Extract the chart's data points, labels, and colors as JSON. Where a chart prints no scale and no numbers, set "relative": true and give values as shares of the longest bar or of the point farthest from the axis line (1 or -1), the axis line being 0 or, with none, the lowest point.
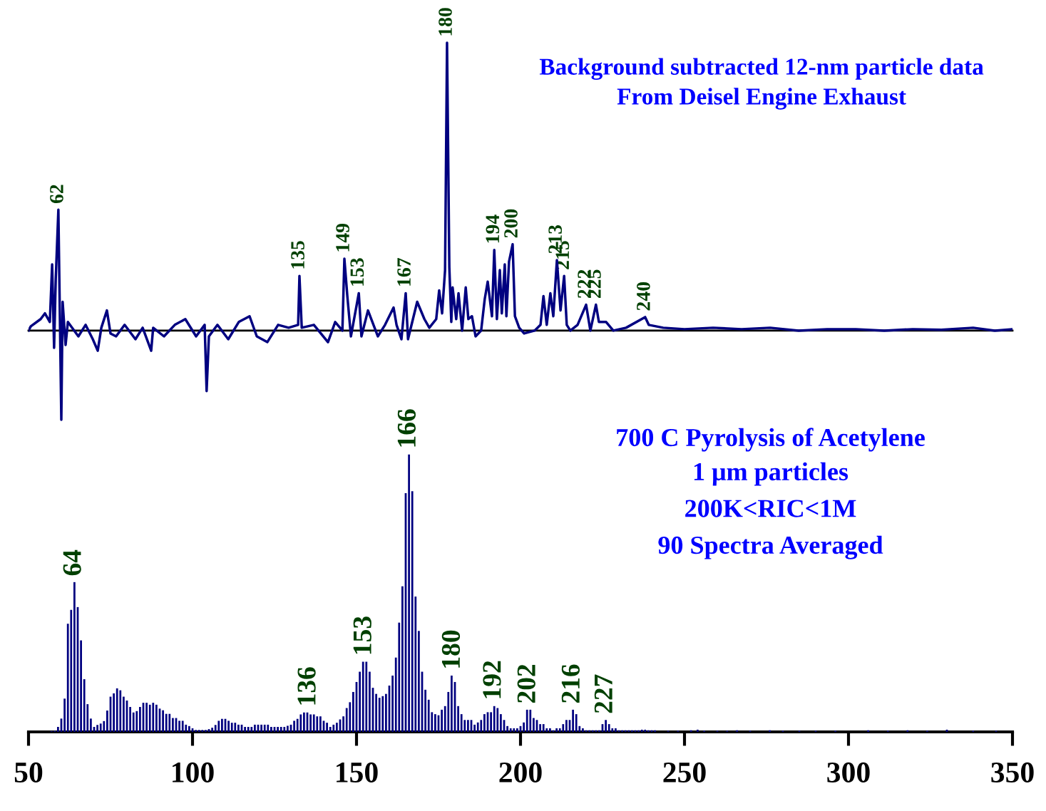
{
  "chart_data": [
    {
      "type": "line",
      "title": "Background subtracted 12-nm particle data",
      "subtitle": "From Deisel Engine Exhaust",
      "relative": true,
      "tick_labels": false,
      "xlim": [
        50,
        350
      ],
      "series": [
        {
          "color": "#000080",
          "x": [
            50,
            50.7,
            53.7,
            55,
            56.5,
            57.2,
            57.8,
            58.3,
            59.1,
            60,
            60.4,
            61.3,
            62,
            65.2,
            67.4,
            69.6,
            71.1,
            72.2,
            73.9,
            75,
            76.7,
            79.3,
            82.6,
            84.8,
            87.4,
            88,
            91.3,
            94.6,
            97.8,
            101.1,
            103.7,
            104.3,
            105,
            107.6,
            110.9,
            114.1,
            117.4,
            119.6,
            122.8,
            126.1,
            129.3,
            132.2,
            132.6,
            133.3,
            137,
            141.3,
            143.5,
            145.7,
            146.3,
            147.2,
            148.3,
            150.7,
            151.5,
            153.5,
            156.5,
            158.7,
            161.3,
            162.2,
            163.7,
            165,
            165.7,
            168.5,
            170.7,
            172.2,
            174.3,
            175.2,
            176.1,
            177,
            177.6,
            178.3,
            178.9,
            179.3,
            180.4,
            181.1,
            182.2,
            183.3,
            184.1,
            185.2,
            186.3,
            188,
            189.1,
            190,
            191.3,
            192,
            192.8,
            193.7,
            194.3,
            195.2,
            195.7,
            196.5,
            197.6,
            198.3,
            199.6,
            201.1,
            204.3,
            206.1,
            207,
            208,
            209.1,
            210,
            211.1,
            212.2,
            213.3,
            214.1,
            215.2,
            217.4,
            220,
            221.3,
            223,
            223.9,
            226.1,
            228.3,
            232.2,
            238,
            239.1,
            243.5,
            250,
            258.7,
            267.4,
            276.1,
            284.8,
            293.5,
            302.2,
            310.9,
            319.6,
            328.3,
            338,
            344.6,
            350
          ],
          "values": [
            0,
            0.015,
            0.04,
            0.06,
            0.03,
            0.23,
            -0.06,
            0.18,
            0.42,
            -0.31,
            0.1,
            -0.05,
            0.03,
            -0.02,
            0.02,
            -0.03,
            -0.07,
            0.01,
            0.07,
            -0.01,
            -0.02,
            0.02,
            -0.03,
            0.01,
            -0.07,
            0.01,
            -0.02,
            0.02,
            0.04,
            -0.02,
            0.02,
            -0.21,
            -0.02,
            0.02,
            -0.03,
            0.03,
            0.05,
            -0.02,
            -0.04,
            0.02,
            0.01,
            0.02,
            0.19,
            0.01,
            0.02,
            -0.04,
            0.03,
            0.0,
            0.25,
            0.12,
            -0.02,
            0.13,
            -0.02,
            0.07,
            -0.02,
            0.02,
            0.08,
            0.02,
            -0.03,
            0.13,
            -0.03,
            0.1,
            0.04,
            0.01,
            0.04,
            0.14,
            0.06,
            0.21,
            1.0,
            0.22,
            0.03,
            0.15,
            0.04,
            0.13,
            0.0,
            0.15,
            0.04,
            0.05,
            -0.02,
            0.0,
            0.11,
            0.17,
            0.05,
            0.28,
            0.04,
            0.21,
            0.06,
            0.23,
            0.05,
            0.24,
            0.3,
            0.05,
            0.01,
            -0.01,
            0.0,
            0.02,
            0.12,
            0.02,
            0.13,
            0.05,
            0.245,
            0.07,
            0.19,
            0.02,
            0.0,
            0.02,
            0.09,
            0.0,
            0.09,
            0.03,
            0.03,
            0.0,
            0.01,
            0.047,
            0.02,
            0.01,
            0.005,
            0.01,
            0.005,
            0.01,
            0.0,
            0.005,
            0.005,
            0.0,
            0.005,
            0.003,
            0.01,
            0.0,
            0.005
          ]
        }
      ],
      "annotations": [
        {
          "text": "62",
          "x": 59.1,
          "y": 0.42
        },
        {
          "text": "135",
          "x": 132.6,
          "y": 0.19
        },
        {
          "text": "149",
          "x": 146.3,
          "y": 0.25
        },
        {
          "text": "153",
          "x": 150.7,
          "y": 0.13
        },
        {
          "text": "167",
          "x": 165,
          "y": 0.13
        },
        {
          "text": "180",
          "x": 177.6,
          "y": 1.0
        },
        {
          "text": "194",
          "x": 192,
          "y": 0.28
        },
        {
          "text": "200",
          "x": 197.6,
          "y": 0.3
        },
        {
          "text": "213",
          "x": 211.1,
          "y": 0.245
        },
        {
          "text": "215",
          "x": 213.3,
          "y": 0.19
        },
        {
          "text": "222",
          "x": 220,
          "y": 0.09
        },
        {
          "text": "225",
          "x": 223,
          "y": 0.09
        },
        {
          "text": "240",
          "x": 238,
          "y": 0.047
        }
      ]
    },
    {
      "type": "bar",
      "title": "700 C Pyrolysis of Acetylene",
      "subtitle": "1 μm particles\n200K<RIC<1M\n90 Spectra Averaged",
      "relative": true,
      "xlim": [
        50,
        350
      ],
      "xticks": [
        50,
        100,
        150,
        200,
        250,
        300,
        350
      ],
      "series": [
        {
          "color": "#000080",
          "x": [
            57,
            58,
            59,
            60,
            61,
            62,
            63,
            64,
            65,
            66,
            67,
            68,
            69,
            70,
            71,
            72,
            73,
            74,
            75,
            76,
            77,
            78,
            79,
            80,
            81,
            82,
            83,
            84,
            85,
            86,
            87,
            88,
            89,
            90,
            91,
            92,
            93,
            94,
            95,
            96,
            97,
            98,
            99,
            100,
            101,
            102,
            103,
            104,
            105,
            106,
            107,
            108,
            109,
            110,
            111,
            112,
            113,
            114,
            115,
            116,
            117,
            118,
            119,
            120,
            121,
            122,
            123,
            124,
            125,
            126,
            127,
            128,
            129,
            130,
            131,
            132,
            133,
            134,
            135,
            136,
            137,
            138,
            139,
            140,
            141,
            142,
            143,
            144,
            145,
            146,
            147,
            148,
            149,
            150,
            151,
            152,
            153,
            154,
            155,
            156,
            157,
            158,
            159,
            160,
            161,
            162,
            163,
            164,
            165,
            166,
            167,
            168,
            169,
            170,
            171,
            172,
            173,
            174,
            175,
            176,
            177,
            178,
            179,
            180,
            181,
            182,
            183,
            184,
            185,
            186,
            187,
            188,
            189,
            190,
            191,
            192,
            193,
            194,
            195,
            196,
            197,
            198,
            199,
            200,
            201,
            202,
            203,
            204,
            205,
            206,
            207,
            208,
            209,
            210,
            211,
            212,
            213,
            214,
            215,
            216,
            217,
            218,
            219,
            220,
            221,
            222,
            223,
            224,
            225,
            226,
            227,
            228,
            229,
            230,
            231,
            232,
            233,
            234,
            235,
            236,
            237,
            238,
            239,
            240,
            241,
            245,
            248,
            252,
            254,
            256,
            260,
            263,
            266,
            270,
            276,
            280,
            285,
            290,
            296,
            306,
            312,
            318,
            324,
            330,
            338,
            345
          ],
          "values": [
            0.003,
            0.004,
            0.018,
            0.048,
            0.12,
            0.39,
            0.44,
            0.54,
            0.45,
            0.33,
            0.19,
            0.1,
            0.048,
            0.018,
            0.025,
            0.03,
            0.039,
            0.077,
            0.127,
            0.139,
            0.157,
            0.15,
            0.127,
            0.113,
            0.09,
            0.07,
            0.075,
            0.09,
            0.105,
            0.105,
            0.098,
            0.105,
            0.098,
            0.084,
            0.078,
            0.065,
            0.065,
            0.05,
            0.05,
            0.04,
            0.04,
            0.026,
            0.021,
            0.013,
            0.007,
            0.007,
            0.007,
            0.007,
            0.01,
            0.015,
            0.025,
            0.04,
            0.047,
            0.047,
            0.04,
            0.033,
            0.033,
            0.026,
            0.026,
            0.018,
            0.018,
            0.018,
            0.026,
            0.026,
            0.026,
            0.026,
            0.026,
            0.018,
            0.018,
            0.018,
            0.018,
            0.018,
            0.022,
            0.026,
            0.04,
            0.047,
            0.063,
            0.07,
            0.07,
            0.063,
            0.063,
            0.056,
            0.056,
            0.04,
            0.033,
            0.018,
            0.026,
            0.033,
            0.045,
            0.056,
            0.086,
            0.107,
            0.144,
            0.18,
            0.217,
            0.253,
            0.253,
            0.217,
            0.159,
            0.137,
            0.123,
            0.129,
            0.137,
            0.167,
            0.203,
            0.268,
            0.394,
            0.525,
            0.861,
            1.0,
            0.868,
            0.488,
            0.364,
            0.217,
            0.152,
            0.116,
            0.071,
            0.064,
            0.06,
            0.08,
            0.093,
            0.144,
            0.203,
            0.18,
            0.093,
            0.064,
            0.043,
            0.043,
            0.043,
            0.026,
            0.034,
            0.043,
            0.064,
            0.071,
            0.071,
            0.093,
            0.086,
            0.064,
            0.043,
            0.021,
            0.013,
            0.013,
            0.013,
            0.021,
            0.034,
            0.08,
            0.08,
            0.05,
            0.043,
            0.028,
            0.028,
            0.013,
            0.013,
            0.006,
            0.013,
            0.013,
            0.028,
            0.043,
            0.043,
            0.08,
            0.064,
            0.021,
            0.013,
            0.006,
            0.006,
            0.006,
            0.006,
            0.006,
            0.028,
            0.043,
            0.028,
            0.013,
            0.013,
            0.006,
            0.006,
            0.006,
            0.006,
            0.006,
            0.006,
            0.006,
            0.008,
            0.008,
            0.006,
            0.006,
            0.006,
            0.004,
            0.004,
            0.006,
            0.008,
            0.004,
            0.004,
            0.004,
            0.006,
            0.004,
            0.006,
            0.004,
            0.004,
            0.004,
            0.004,
            0.006,
            0.004,
            0.006,
            0.004,
            0.008,
            0.004,
            0.004
          ]
        }
      ],
      "annotations": [
        {
          "text": "64",
          "x": 64,
          "y": 0.54
        },
        {
          "text": "136",
          "x": 135.5,
          "y": 0.07
        },
        {
          "text": "153",
          "x": 152.5,
          "y": 0.253
        },
        {
          "text": "166",
          "x": 166,
          "y": 1.0
        },
        {
          "text": "180",
          "x": 179.5,
          "y": 0.203
        },
        {
          "text": "192",
          "x": 192,
          "y": 0.093
        },
        {
          "text": "202",
          "x": 202.5,
          "y": 0.08
        },
        {
          "text": "216",
          "x": 216,
          "y": 0.08
        },
        {
          "text": "227",
          "x": 226,
          "y": 0.043
        }
      ]
    }
  ]
}
